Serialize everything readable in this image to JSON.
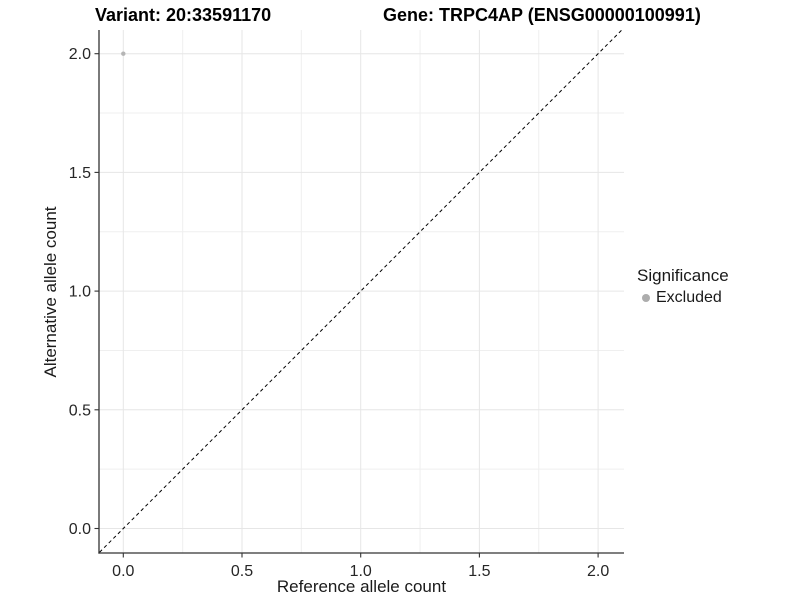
{
  "chart_data": {
    "type": "scatter",
    "titles": [
      "Variant: 20:33591170",
      "Gene: TRPC4AP (ENSG00000100991)"
    ],
    "xlabel": "Reference allele count",
    "ylabel": "Alternative allele count",
    "xlim": [
      -0.1,
      2.1
    ],
    "ylim": [
      -0.1,
      2.1
    ],
    "xticks": {
      "values": [
        0,
        0.5,
        1,
        1.5,
        2
      ],
      "labels": [
        "0.0",
        "0.5",
        "1.0",
        "1.5",
        "2.0"
      ]
    },
    "yticks": {
      "values": [
        0,
        0.5,
        1,
        1.5,
        2
      ],
      "labels": [
        "0.0",
        "0.5",
        "1.0",
        "1.5",
        "2.0"
      ]
    },
    "minor_gridlines": [
      0.25,
      0.75,
      1.25,
      1.75
    ],
    "grid": {
      "major": true,
      "minor": true
    },
    "points": [
      {
        "x": 0,
        "y": 2,
        "series": "Excluded"
      }
    ],
    "point_color": "#b5b5b5",
    "point_radius_px": 2.2,
    "reference_line": {
      "type": "identity",
      "slope": 1,
      "intercept": 0,
      "style": "dashed",
      "color": "#000000"
    },
    "legend": {
      "title": "Significance",
      "position": "right",
      "entries": [
        {
          "label": "Excluded",
          "color": "#adadad",
          "marker": "circle"
        }
      ]
    },
    "colors": {
      "panel_background": "#ffffff",
      "major_grid": "#e6e6e6",
      "minor_grid": "#efefef",
      "axis_line": "#333333",
      "tick_text": "#262626"
    }
  }
}
